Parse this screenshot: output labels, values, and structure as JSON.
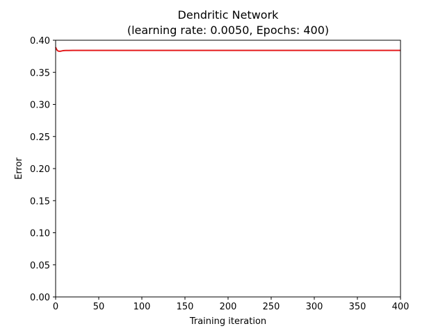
{
  "chart_data": {
    "type": "line",
    "title": "Dendritic Network",
    "subtitle": "(learning rate: 0.0050, Epochs: 400)",
    "xlabel": "Training iteration",
    "ylabel": "Error",
    "xlim": [
      0,
      400
    ],
    "ylim": [
      0,
      0.4
    ],
    "x_ticks": [
      "0",
      "50",
      "100",
      "150",
      "200",
      "250",
      "300",
      "350",
      "400"
    ],
    "y_ticks": [
      "0.00",
      "0.05",
      "0.10",
      "0.15",
      "0.20",
      "0.25",
      "0.30",
      "0.35",
      "0.40"
    ],
    "grid": false,
    "series": [
      {
        "color": "#e41a1c",
        "x": [
          0,
          1,
          2,
          3,
          4,
          5,
          6,
          7,
          8,
          10,
          12,
          15,
          20,
          30,
          50,
          100,
          150,
          200,
          250,
          300,
          350,
          400
        ],
        "y": [
          0.389,
          0.386,
          0.384,
          0.3832,
          0.3828,
          0.3828,
          0.383,
          0.3833,
          0.3836,
          0.3839,
          0.384,
          0.3841,
          0.3842,
          0.3842,
          0.3842,
          0.3842,
          0.3842,
          0.3842,
          0.3842,
          0.3842,
          0.3842,
          0.3842
        ]
      }
    ]
  }
}
